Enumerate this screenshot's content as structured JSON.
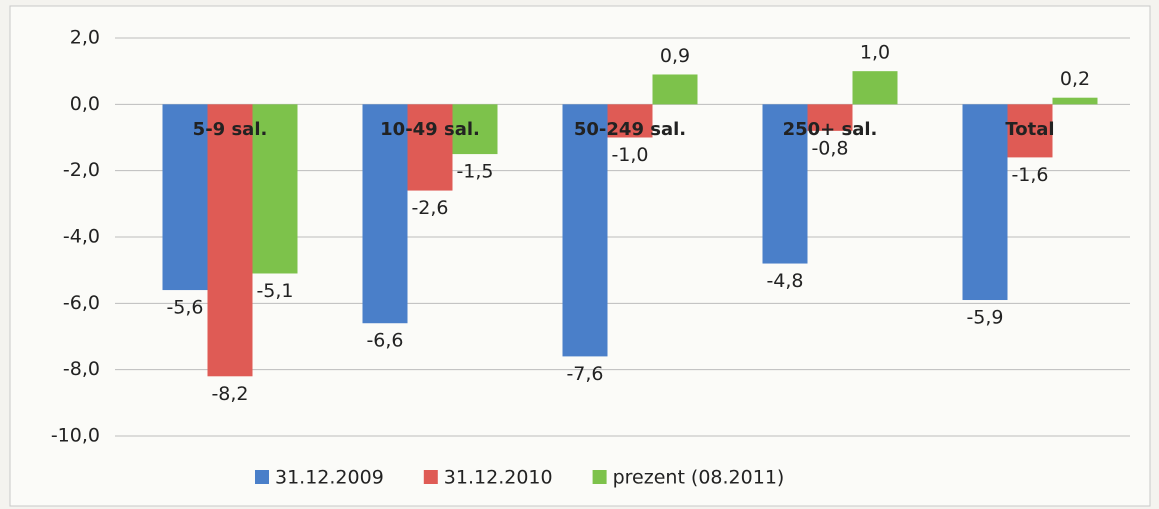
{
  "chart_data": {
    "type": "bar",
    "categories": [
      "5-9 sal.",
      "10-49 sal.",
      "50-249 sal.",
      "250+ sal.",
      "Total"
    ],
    "series": [
      {
        "name": "31.12.2009",
        "color": "#4a7fc9",
        "values": [
          -5.6,
          -6.6,
          -7.6,
          -4.8,
          -5.9
        ],
        "value_labels": [
          "-5,6",
          "-6,6",
          "-7,6",
          "-4,8",
          "-5,9"
        ]
      },
      {
        "name": "31.12.2010",
        "color": "#df5b55",
        "values": [
          -8.2,
          -2.6,
          -1.0,
          -0.8,
          -1.6
        ],
        "value_labels": [
          "-8,2",
          "-2,6",
          "-1,0",
          "-0,8",
          "-1,6"
        ]
      },
      {
        "name": "prezent (08.2011)",
        "color": "#7dc24b",
        "values": [
          -5.1,
          -1.5,
          0.9,
          1.0,
          0.2
        ],
        "value_labels": [
          "-5,1",
          "-1,5",
          "0,9",
          "1,0",
          "0,2"
        ]
      }
    ],
    "ylim": [
      -10,
      2
    ],
    "yticks": [
      {
        "value": 2,
        "label": "2,0"
      },
      {
        "value": 0,
        "label": "0,0"
      },
      {
        "value": -2,
        "label": "-2,0"
      },
      {
        "value": -4,
        "label": "-4,0"
      },
      {
        "value": -6,
        "label": "-6,0"
      },
      {
        "value": -8,
        "label": "-8,0"
      },
      {
        "value": -10,
        "label": "-10,0"
      }
    ],
    "grid": true,
    "legend": "bottom"
  }
}
